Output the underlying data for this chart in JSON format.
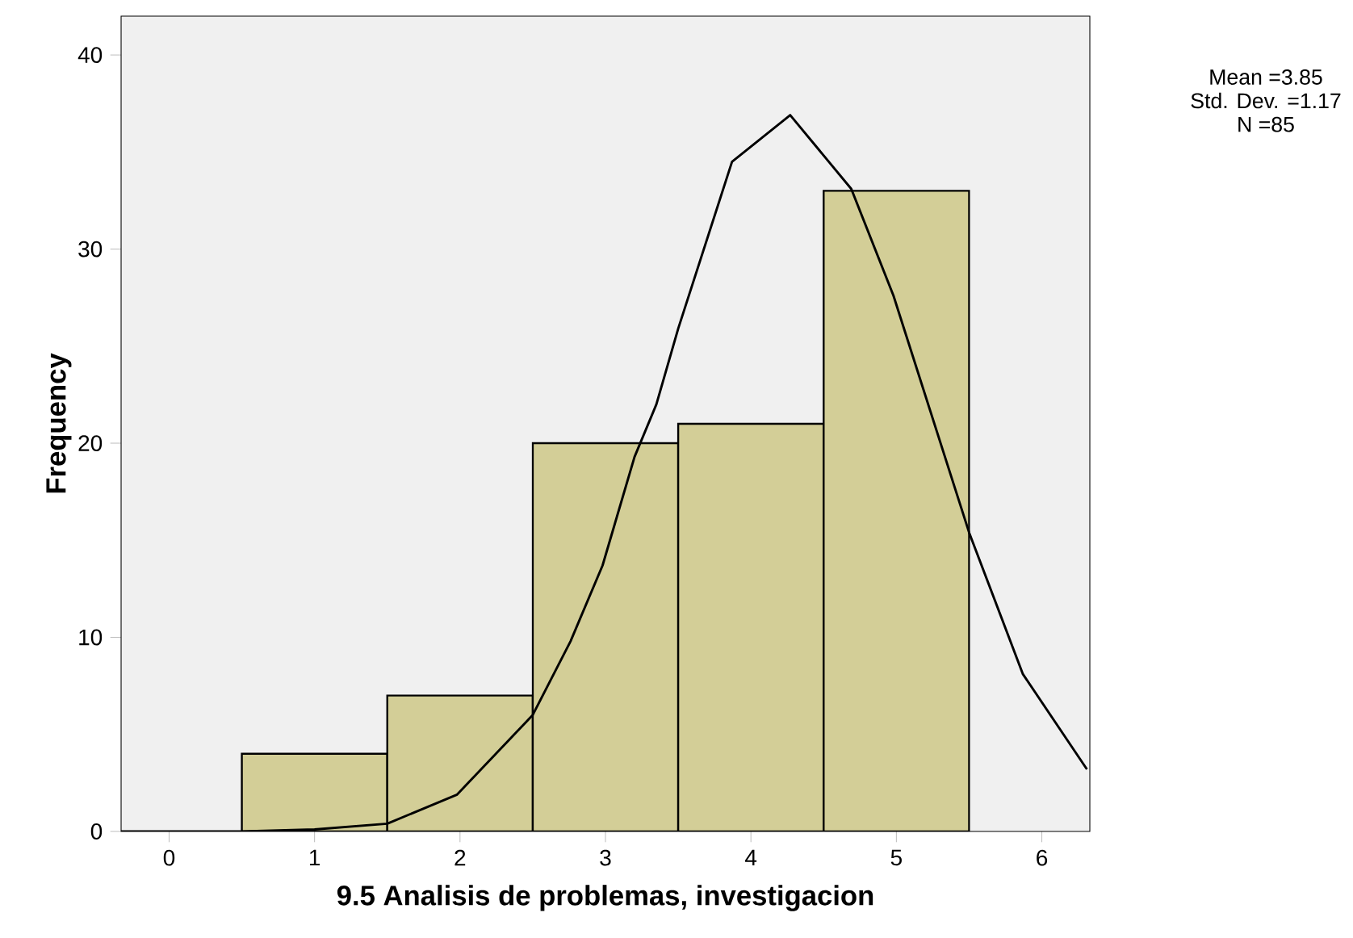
{
  "chart_data": {
    "type": "histogram",
    "xlabel": "9.5 Analisis de problemas, investigacion",
    "ylabel": "Frequency",
    "bins": [
      0.5,
      1.5,
      2.5,
      3.5,
      4.5,
      5.5
    ],
    "values": [
      4,
      7,
      20,
      21,
      33
    ],
    "color": "#d3ce97",
    "series": [
      {
        "type": "line",
        "color": "#000000",
        "x": [
          -0.33,
          0.5,
          1,
          1.5,
          1.98,
          2.5,
          2.76,
          2.98,
          3.2,
          3.35,
          3.5,
          3.87,
          4.27,
          4.69,
          4.98,
          5.5,
          5.87,
          6.31
        ],
        "values": [
          0,
          0,
          0.1,
          0.4,
          1.9,
          6,
          9.8,
          13.7,
          19.3,
          22,
          25.9,
          34.5,
          36.9,
          33.1,
          27.6,
          15.4,
          8.1,
          3.2
        ]
      }
    ],
    "xlim": [
      -0.33,
      6.33
    ],
    "ylim": [
      0,
      42
    ],
    "xticks": [
      0,
      1,
      2,
      3,
      4,
      5,
      6
    ],
    "yticks": [
      0,
      10,
      20,
      30,
      40
    ],
    "grid": false,
    "annotations": [
      "Mean =3.85",
      "Std. Dev. =1.17",
      "N =85"
    ]
  }
}
